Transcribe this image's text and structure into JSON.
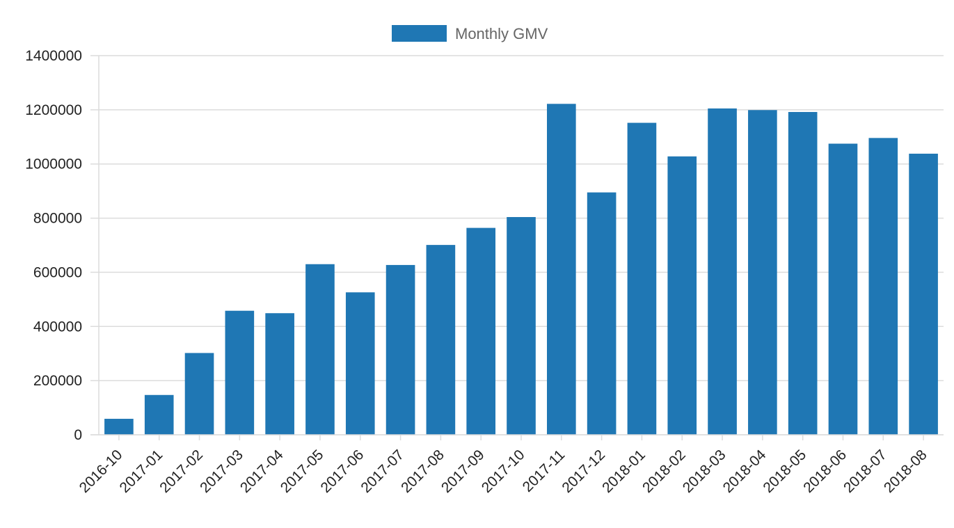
{
  "chart_data": {
    "type": "bar",
    "categories": [
      "2016-10",
      "2017-01",
      "2017-02",
      "2017-03",
      "2017-04",
      "2017-05",
      "2017-06",
      "2017-07",
      "2017-08",
      "2017-09",
      "2017-10",
      "2017-11",
      "2017-12",
      "2018-01",
      "2018-02",
      "2018-03",
      "2018-04",
      "2018-05",
      "2018-06",
      "2018-07",
      "2018-08"
    ],
    "series": [
      {
        "name": "Monthly GMV",
        "color": "#1f77b4",
        "values": [
          59000,
          147000,
          302000,
          458000,
          449000,
          630000,
          526000,
          627000,
          701000,
          764000,
          804000,
          1222000,
          895000,
          1152000,
          1028000,
          1205000,
          1199000,
          1192000,
          1075000,
          1096000,
          1038000
        ]
      }
    ],
    "ylim": [
      0,
      1400000
    ],
    "yticks": [
      "0",
      "200000",
      "400000",
      "600000",
      "800000",
      "1000000",
      "1200000",
      "1400000"
    ],
    "grid": true,
    "legend_position": "top-center",
    "axis_color": "#dcdcdc"
  }
}
